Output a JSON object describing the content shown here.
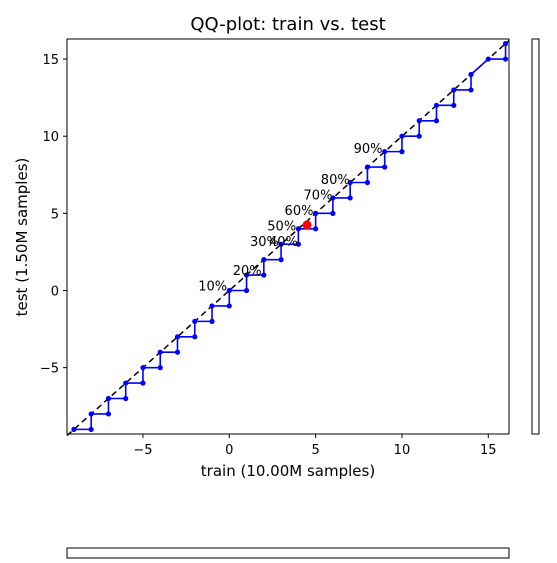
{
  "chart_data": {
    "type": "line",
    "title": "QQ-plot: train vs. test",
    "xlabel": "train (10.00M samples)",
    "ylabel": "test (1.50M samples)",
    "xlim": [
      -9.4,
      16.2
    ],
    "ylim": [
      -9.3,
      16.3
    ],
    "xticks": [
      -5,
      0,
      5,
      10,
      15
    ],
    "yticks": [
      -5,
      0,
      5,
      10,
      15
    ],
    "xtick_labels": [
      "−5",
      "0",
      "5",
      "10",
      "15"
    ],
    "ytick_labels": [
      "−5",
      "0",
      "5",
      "10",
      "15"
    ],
    "grid": false,
    "reference_line": {
      "style": "dashed",
      "color": "#000000",
      "from": [
        -9.4,
        -9.4
      ],
      "to": [
        16.2,
        16.2
      ]
    },
    "series": [
      {
        "color": "#0000ff",
        "x": [
          -9,
          -8,
          -8,
          -7,
          -7,
          -6,
          -6,
          -5,
          -5,
          -4,
          -4,
          -3,
          -3,
          -2,
          -2,
          -1,
          -1,
          0,
          0,
          1,
          1,
          2,
          2,
          3,
          3,
          4,
          4,
          5,
          5,
          6,
          6,
          7,
          7,
          8,
          8,
          9,
          9,
          10,
          10,
          11,
          11,
          12,
          12,
          13,
          13,
          14,
          14,
          15,
          16,
          16
        ],
        "y": [
          -9,
          -9,
          -8,
          -8,
          -7,
          -7,
          -6,
          -6,
          -5,
          -5,
          -4,
          -4,
          -3,
          -3,
          -2,
          -2,
          -1,
          -1,
          0,
          0,
          1,
          1,
          2,
          2,
          3,
          3,
          4,
          4,
          5,
          5,
          6,
          6,
          7,
          7,
          8,
          8,
          9,
          9,
          10,
          10,
          11,
          11,
          12,
          12,
          13,
          13,
          14,
          15,
          15,
          16
        ]
      }
    ],
    "highlight_point": {
      "x": 4.5,
      "y": 4.25,
      "color": "#ff0000"
    },
    "annotations": [
      {
        "text": "10%",
        "x": -1.8,
        "y": 0.0
      },
      {
        "text": "20%",
        "x": 0.2,
        "y": 1.0
      },
      {
        "text": "30%",
        "x": 1.2,
        "y": 2.9
      },
      {
        "text": "40%",
        "x": 2.3,
        "y": 2.9
      },
      {
        "text": "50%",
        "x": 2.2,
        "y": 3.9
      },
      {
        "text": "60%",
        "x": 3.2,
        "y": 4.9
      },
      {
        "text": "70%",
        "x": 4.3,
        "y": 5.9
      },
      {
        "text": "80%",
        "x": 5.3,
        "y": 6.9
      },
      {
        "text": "90%",
        "x": 7.2,
        "y": 8.9
      }
    ]
  }
}
